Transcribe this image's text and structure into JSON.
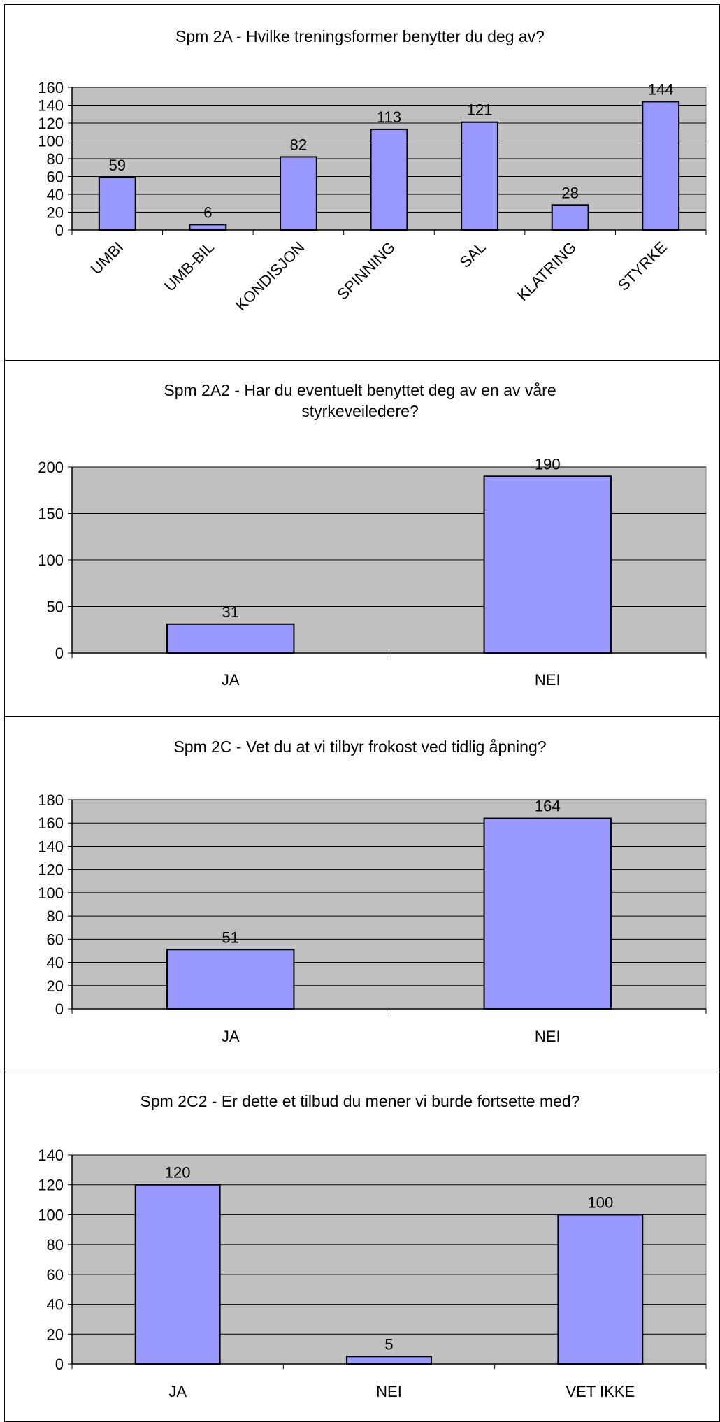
{
  "chart_data": [
    {
      "type": "bar",
      "title": "Spm 2A - Hvilke treningsformer benytter du deg av?",
      "categories": [
        "UMBI",
        "UMB-BIL",
        "KONDISJON",
        "SPINNING",
        "SAL",
        "KLATRING",
        "STYRKE"
      ],
      "values": [
        59,
        6,
        82,
        113,
        121,
        28,
        144
      ],
      "ylim": [
        0,
        160
      ],
      "yticks": [
        0,
        20,
        40,
        60,
        80,
        100,
        120,
        140,
        160
      ],
      "grid": true,
      "legend": "none",
      "colors": {
        "bar": "#9999ff",
        "plot_bg": "#c0c0c0"
      }
    },
    {
      "type": "bar",
      "title": "Spm 2A2 - Har du eventuelt benyttet deg av en av våre styrkeveiledere?",
      "categories": [
        "JA",
        "NEI"
      ],
      "values": [
        31,
        190
      ],
      "ylim": [
        0,
        200
      ],
      "yticks": [
        0,
        50,
        100,
        150,
        200
      ],
      "grid": true,
      "legend": "none",
      "colors": {
        "bar": "#9999ff",
        "plot_bg": "#c0c0c0"
      }
    },
    {
      "type": "bar",
      "title": "Spm 2C - Vet du at vi tilbyr frokost ved tidlig åpning?",
      "categories": [
        "JA",
        "NEI"
      ],
      "values": [
        51,
        164
      ],
      "ylim": [
        0,
        180
      ],
      "yticks": [
        0,
        20,
        40,
        60,
        80,
        100,
        120,
        140,
        160,
        180
      ],
      "grid": true,
      "legend": "none",
      "colors": {
        "bar": "#9999ff",
        "plot_bg": "#c0c0c0"
      }
    },
    {
      "type": "bar",
      "title": "Spm 2C2 - Er dette et tilbud du mener vi burde fortsette med?",
      "categories": [
        "JA",
        "NEI",
        "VET IKKE"
      ],
      "values": [
        120,
        5,
        100
      ],
      "ylim": [
        0,
        140
      ],
      "yticks": [
        0,
        20,
        40,
        60,
        80,
        100,
        120,
        140
      ],
      "grid": true,
      "legend": "none",
      "colors": {
        "bar": "#9999ff",
        "plot_bg": "#c0c0c0"
      }
    }
  ]
}
